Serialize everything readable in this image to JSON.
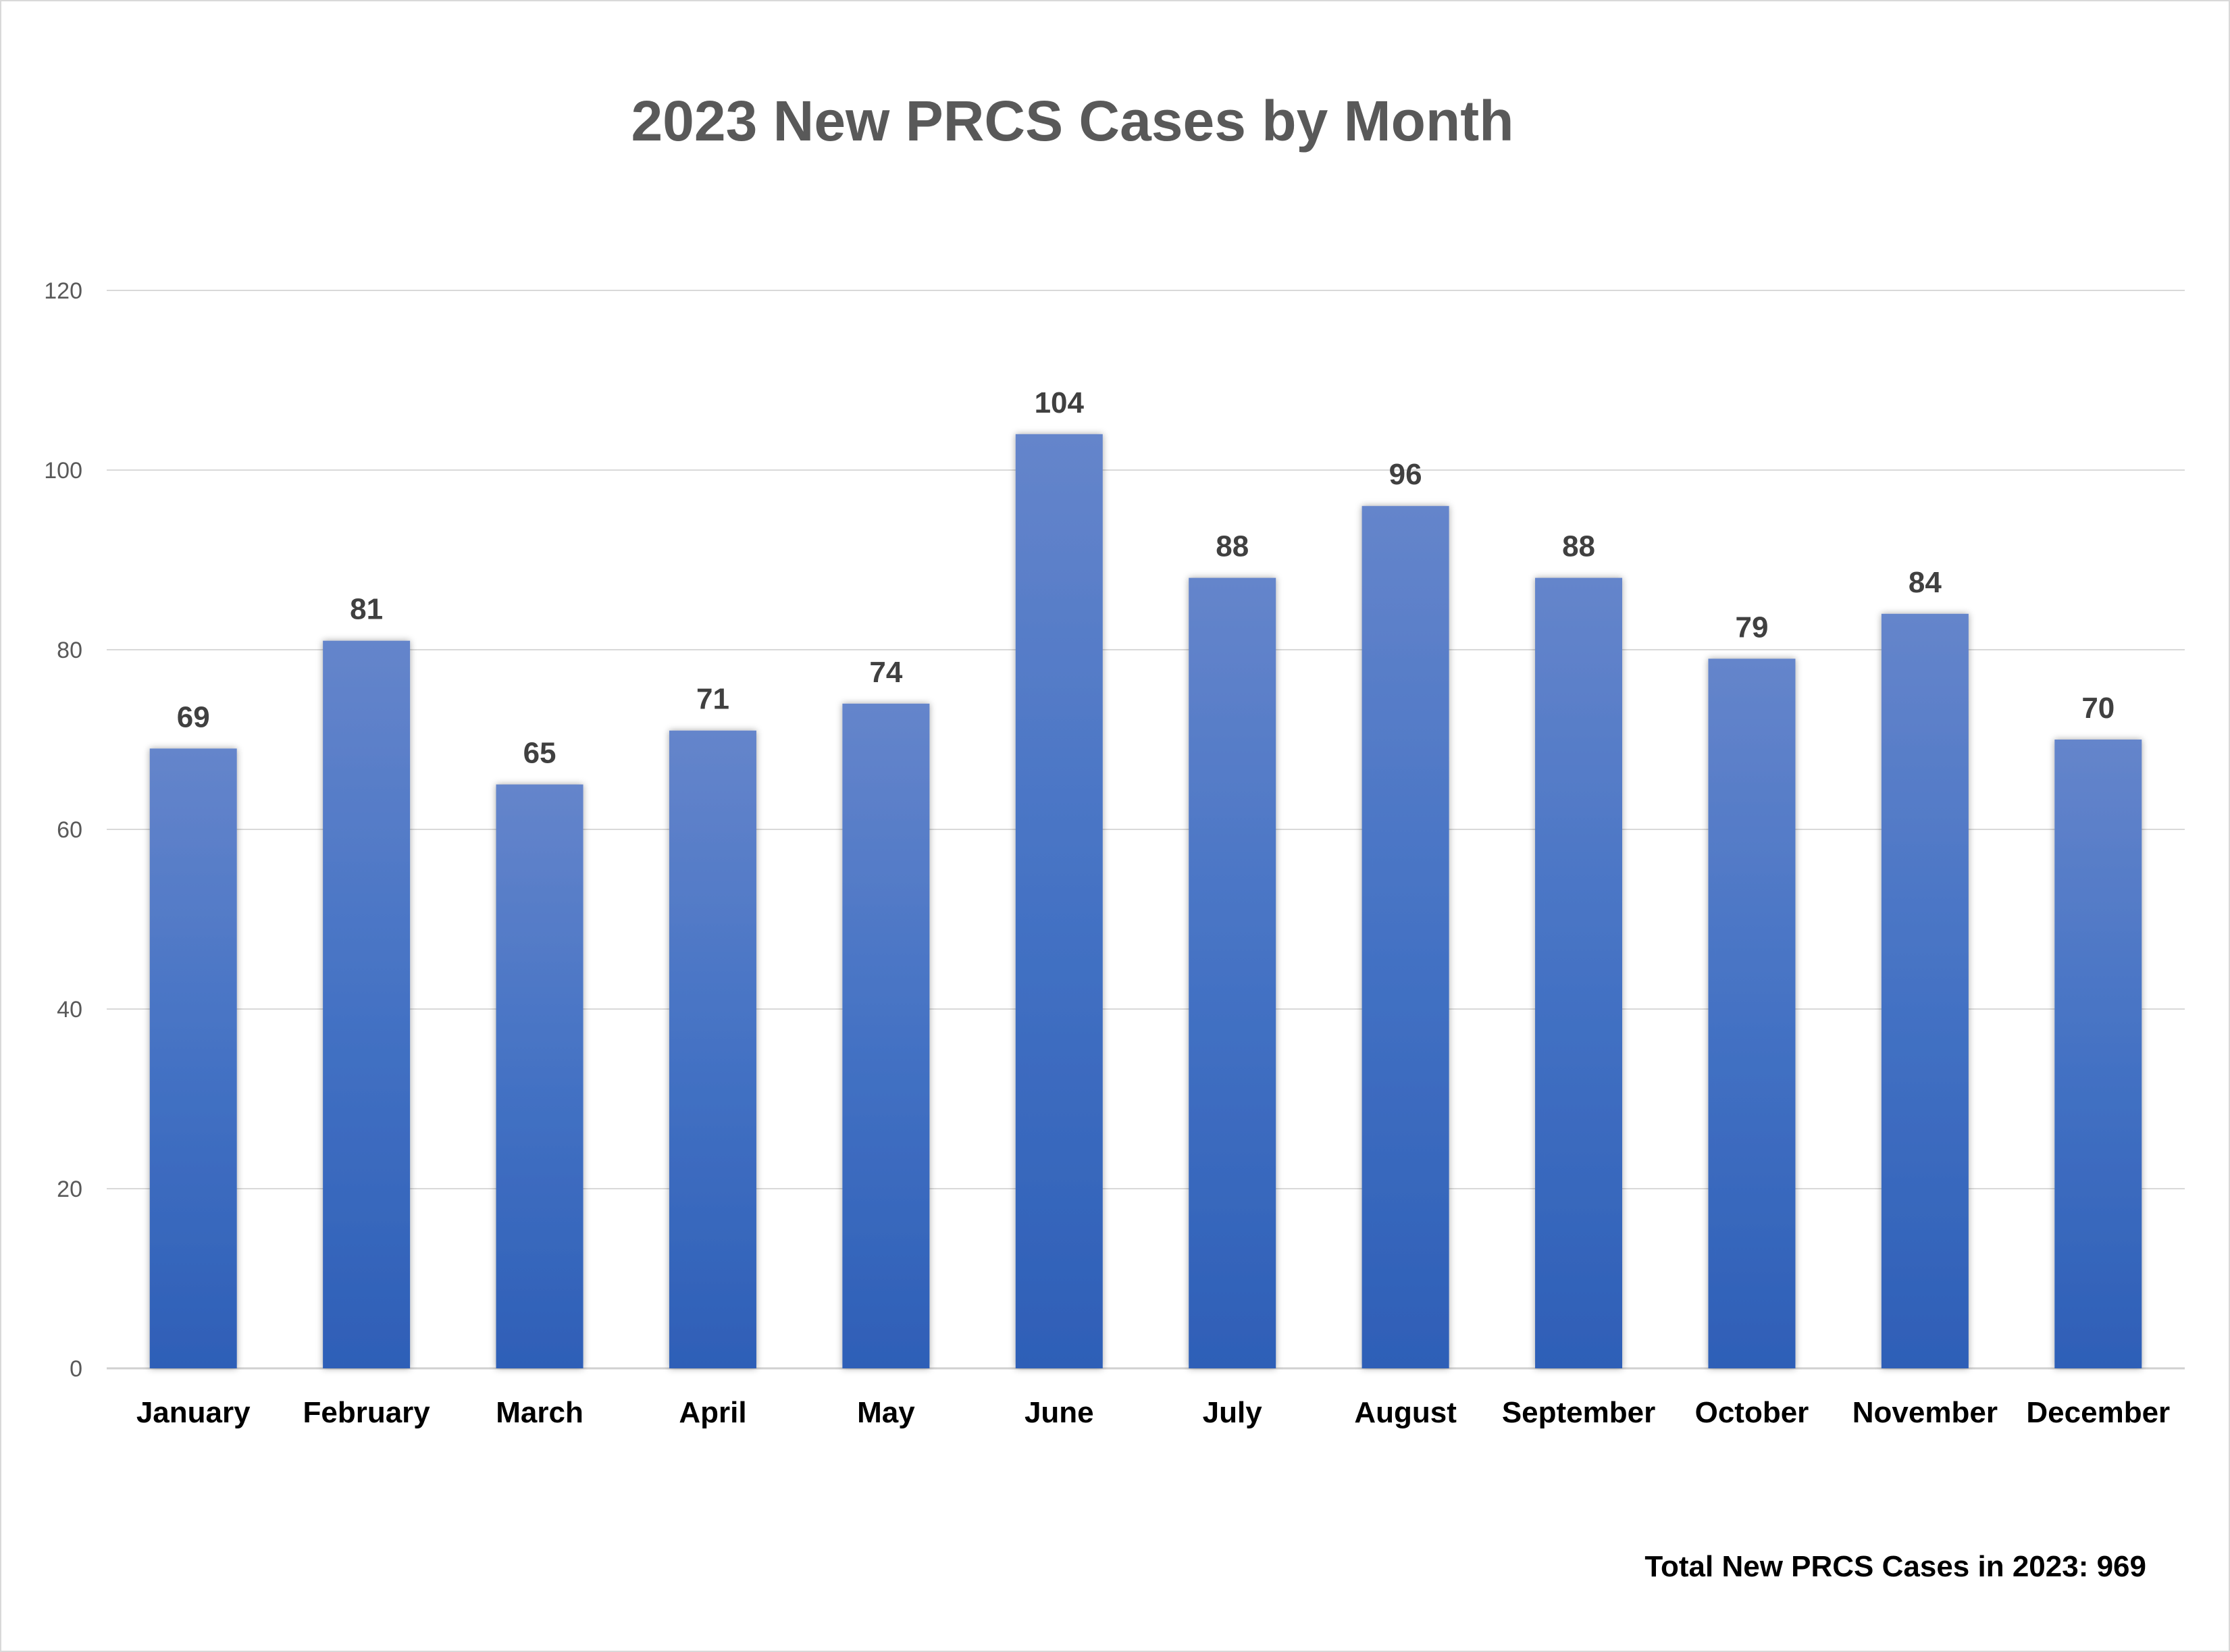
{
  "chart_data": {
    "type": "bar",
    "title": "2023 New PRCS Cases by Month",
    "categories": [
      "January",
      "February",
      "March",
      "April",
      "May",
      "June",
      "July",
      "August",
      "September",
      "October",
      "November",
      "December"
    ],
    "values": [
      69,
      81,
      65,
      71,
      74,
      104,
      88,
      96,
      88,
      79,
      84,
      70
    ],
    "xlabel": "",
    "ylabel": "",
    "ylim": [
      0,
      120
    ],
    "yticks": [
      0,
      20,
      40,
      60,
      80,
      100,
      120
    ],
    "grid": true,
    "legend": "none",
    "data_labels": true,
    "bar_color_top": "#6585cb",
    "bar_color_bottom": "#2e5fb7",
    "annotation": "Total New PRCS Cases in 2023: 969"
  }
}
